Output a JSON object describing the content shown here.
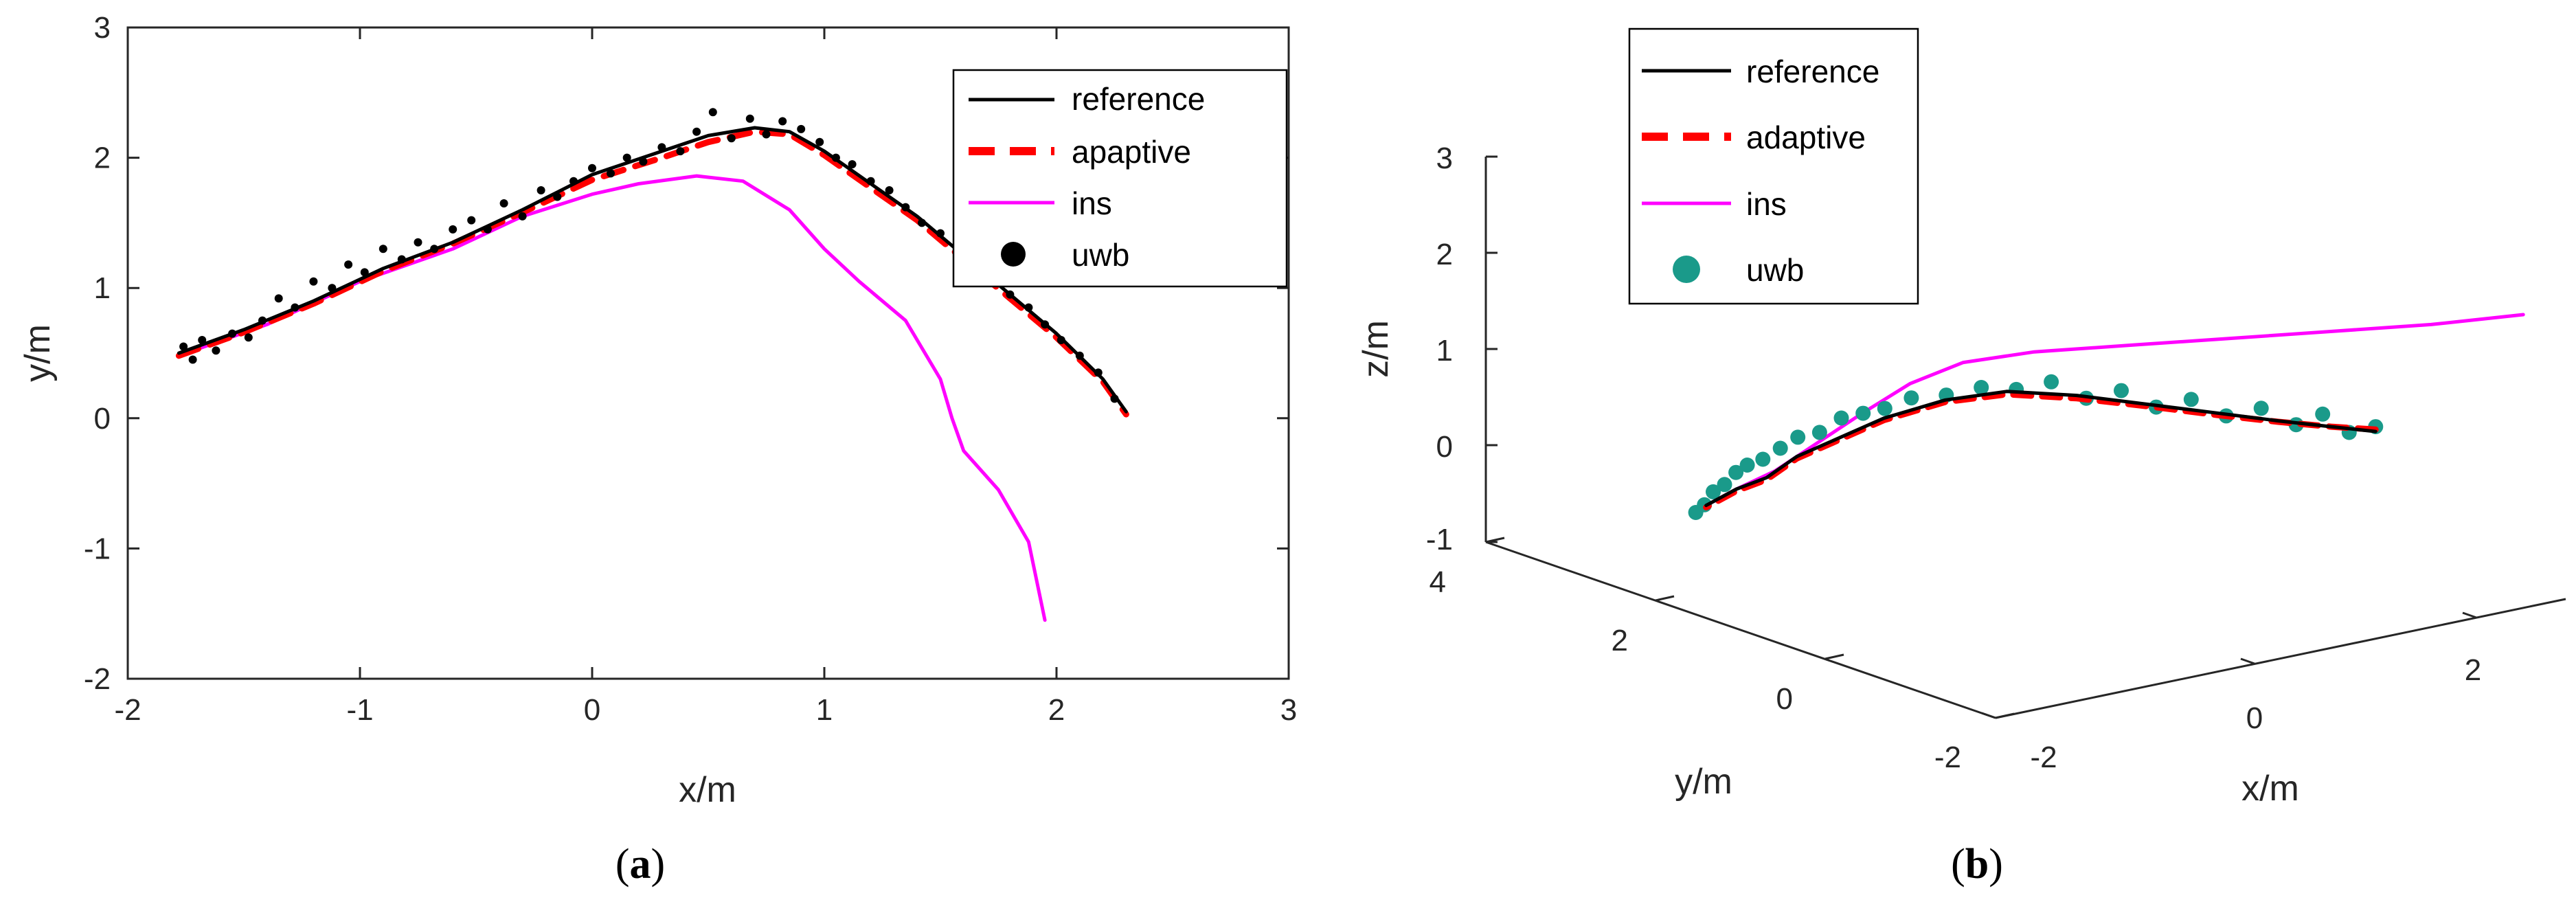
{
  "charts": {
    "a": {
      "caption_open": "(",
      "caption_letter": "a",
      "caption_close": ")",
      "legend": [
        "reference",
        "apaptive",
        "ins",
        "uwb"
      ],
      "colors": {
        "reference": "#000000",
        "adaptive": "#ff0000",
        "ins": "#ff00ff",
        "uwb": "#000000"
      }
    },
    "b": {
      "caption_open": "(",
      "caption_letter": "b",
      "caption_close": ")",
      "legend": [
        "reference",
        "adaptive",
        "ins",
        "uwb"
      ],
      "colors": {
        "reference": "#000000",
        "adaptive": "#ff0000",
        "ins": "#ff00ff",
        "uwb": "#1a9a8a"
      }
    }
  },
  "chart_data": [
    {
      "id": "a",
      "type": "line",
      "title": "",
      "xlabel": "x/m",
      "ylabel": "y/m",
      "xlim": [
        -2,
        3
      ],
      "ylim": [
        -2,
        3
      ],
      "xticks": [
        -2,
        -1,
        0,
        1,
        2,
        3
      ],
      "yticks": [
        -2,
        -1,
        0,
        1,
        2,
        3
      ],
      "xtick_labels": [
        "-2",
        "-1",
        "0",
        "1",
        "2",
        "3"
      ],
      "ytick_labels": [
        "-2",
        "-1",
        "0",
        "1",
        "2",
        "3"
      ],
      "legend_position": "top-right",
      "series": [
        {
          "name": "reference",
          "style": "solid",
          "x": [
            -1.78,
            -1.5,
            -1.2,
            -0.9,
            -0.6,
            -0.3,
            0.0,
            0.3,
            0.5,
            0.7,
            0.85,
            1.0,
            1.2,
            1.4,
            1.6,
            1.8,
            2.0,
            2.2,
            2.3
          ],
          "y": [
            0.5,
            0.68,
            0.9,
            1.15,
            1.35,
            1.6,
            1.87,
            2.05,
            2.17,
            2.23,
            2.2,
            2.05,
            1.8,
            1.55,
            1.25,
            0.95,
            0.65,
            0.3,
            0.05
          ]
        },
        {
          "name": "apaptive",
          "style": "dashed",
          "x": [
            -1.78,
            -1.5,
            -1.2,
            -0.9,
            -0.6,
            -0.3,
            0.0,
            0.3,
            0.5,
            0.7,
            0.85,
            1.0,
            1.2,
            1.4,
            1.6,
            1.8,
            2.0,
            2.2,
            2.3
          ],
          "y": [
            0.48,
            0.66,
            0.88,
            1.13,
            1.34,
            1.58,
            1.83,
            2.0,
            2.12,
            2.2,
            2.18,
            2.02,
            1.77,
            1.52,
            1.22,
            0.92,
            0.62,
            0.28,
            0.03
          ]
        },
        {
          "name": "ins",
          "style": "solid",
          "x": [
            -1.78,
            -1.4,
            -1.0,
            -0.6,
            -0.3,
            0.0,
            0.2,
            0.45,
            0.65,
            0.85,
            1.0,
            1.15,
            1.35,
            1.5,
            1.55,
            1.6,
            1.75,
            1.88,
            1.95
          ],
          "y": [
            0.48,
            0.72,
            1.05,
            1.3,
            1.55,
            1.72,
            1.8,
            1.86,
            1.82,
            1.6,
            1.3,
            1.05,
            0.75,
            0.3,
            0.0,
            -0.25,
            -0.55,
            -0.95,
            -1.55
          ]
        },
        {
          "name": "uwb",
          "style": "markers",
          "x": [
            -1.76,
            -1.72,
            -1.68,
            -1.62,
            -1.55,
            -1.48,
            -1.42,
            -1.35,
            -1.28,
            -1.2,
            -1.12,
            -1.05,
            -0.98,
            -0.9,
            -0.82,
            -0.75,
            -0.68,
            -0.6,
            -0.52,
            -0.45,
            -0.38,
            -0.3,
            -0.22,
            -0.15,
            -0.08,
            0.0,
            0.08,
            0.15,
            0.22,
            0.3,
            0.38,
            0.45,
            0.52,
            0.6,
            0.68,
            0.75,
            0.82,
            0.9,
            0.98,
            1.05,
            1.12,
            1.2,
            1.28,
            1.35,
            1.42,
            1.5,
            1.58,
            1.65,
            1.72,
            1.8,
            1.88,
            1.95,
            2.02,
            2.1,
            2.18,
            2.25
          ],
          "y": [
            0.55,
            0.45,
            0.6,
            0.52,
            0.65,
            0.62,
            0.75,
            0.92,
            0.85,
            1.05,
            1.0,
            1.18,
            1.12,
            1.3,
            1.22,
            1.35,
            1.3,
            1.45,
            1.52,
            1.45,
            1.65,
            1.55,
            1.75,
            1.7,
            1.82,
            1.92,
            1.88,
            2.0,
            1.97,
            2.08,
            2.05,
            2.2,
            2.35,
            2.15,
            2.3,
            2.18,
            2.28,
            2.22,
            2.12,
            2.0,
            1.95,
            1.82,
            1.75,
            1.62,
            1.5,
            1.42,
            1.3,
            1.2,
            1.05,
            0.95,
            0.85,
            0.72,
            0.6,
            0.48,
            0.35,
            0.15
          ]
        }
      ]
    },
    {
      "id": "b",
      "type": "line",
      "projection": "3d",
      "title": "",
      "xlabel": "x/m",
      "ylabel": "y/m",
      "zlabel": "z/m",
      "xlim": [
        -2,
        4
      ],
      "ylim": [
        -2,
        4
      ],
      "zlim": [
        -1,
        3
      ],
      "xtick_labels": [
        "-2",
        "0",
        "2"
      ],
      "ytick_labels": [
        "-2",
        "0",
        "2",
        "4"
      ],
      "ztick_labels": [
        "-1",
        "0",
        "1",
        "2",
        "3"
      ],
      "legend_position": "top-left",
      "series": [
        {
          "name": "reference",
          "style": "solid",
          "x": [
            2.0,
            1.8,
            1.6,
            1.4,
            1.2,
            1.0,
            0.8,
            0.6,
            0.4,
            0.3,
            0.2,
            0.15,
            0.1,
            0.05
          ],
          "y": [
            -2.0,
            -1.7,
            -1.3,
            -0.8,
            -0.2,
            0.4,
            1.0,
            1.5,
            2.0,
            2.4,
            2.8,
            3.1,
            3.4,
            3.7
          ],
          "z": [
            1.15,
            1.15,
            1.13,
            1.1,
            1.05,
            1.0,
            0.9,
            0.7,
            0.4,
            0.1,
            -0.2,
            -0.5,
            -0.7,
            -0.95
          ]
        },
        {
          "name": "adaptive",
          "style": "dashed",
          "x": [
            2.0,
            1.8,
            1.6,
            1.4,
            1.2,
            1.0,
            0.8,
            0.6,
            0.4,
            0.3,
            0.2,
            0.15,
            0.1,
            0.05
          ],
          "y": [
            -2.0,
            -1.7,
            -1.3,
            -0.8,
            -0.2,
            0.4,
            1.0,
            1.5,
            2.0,
            2.4,
            2.8,
            3.1,
            3.4,
            3.7
          ],
          "z": [
            1.17,
            1.15,
            1.12,
            1.08,
            1.03,
            0.97,
            0.87,
            0.68,
            0.38,
            0.08,
            -0.22,
            -0.52,
            -0.72,
            -0.97
          ]
        },
        {
          "name": "ins",
          "style": "solid",
          "x": [
            4.0,
            3.3,
            2.6,
            2.0,
            1.5,
            1.0,
            0.7,
            0.5,
            0.35,
            0.25,
            0.15,
            0.1,
            0.05
          ],
          "y": [
            -1.5,
            -1.2,
            -0.8,
            -0.3,
            0.3,
            0.9,
            1.4,
            1.8,
            2.2,
            2.6,
            3.0,
            3.4,
            3.7
          ],
          "z": [
            1.8,
            1.75,
            1.7,
            1.6,
            1.45,
            1.3,
            1.1,
            0.8,
            0.4,
            0.0,
            -0.4,
            -0.7,
            -0.95
          ]
        },
        {
          "name": "uwb",
          "style": "markers",
          "x": [
            2.0,
            1.9,
            1.8,
            1.7,
            1.6,
            1.5,
            1.4,
            1.3,
            1.2,
            1.1,
            1.0,
            0.9,
            0.8,
            0.7,
            0.6,
            0.5,
            0.45,
            0.4,
            0.35,
            0.3,
            0.25,
            0.2,
            0.17,
            0.14,
            0.11,
            0.08,
            0.05,
            0.03
          ],
          "y": [
            -2.0,
            -1.8,
            -1.6,
            -1.4,
            -1.1,
            -0.8,
            -0.5,
            -0.2,
            0.1,
            0.4,
            0.7,
            1.0,
            1.3,
            1.6,
            1.9,
            2.1,
            2.3,
            2.5,
            2.7,
            2.9,
            3.05,
            3.2,
            3.35,
            3.45,
            3.55,
            3.65,
            3.72,
            3.8
          ],
          "z": [
            1.2,
            1.1,
            1.25,
            1.1,
            1.2,
            1.05,
            1.15,
            1.0,
            1.1,
            0.95,
            1.05,
            0.9,
            0.85,
            0.7,
            0.6,
            0.45,
            0.35,
            0.25,
            0.05,
            -0.05,
            -0.2,
            -0.35,
            -0.45,
            -0.55,
            -0.7,
            -0.8,
            -0.95,
            -1.05
          ]
        }
      ]
    }
  ]
}
